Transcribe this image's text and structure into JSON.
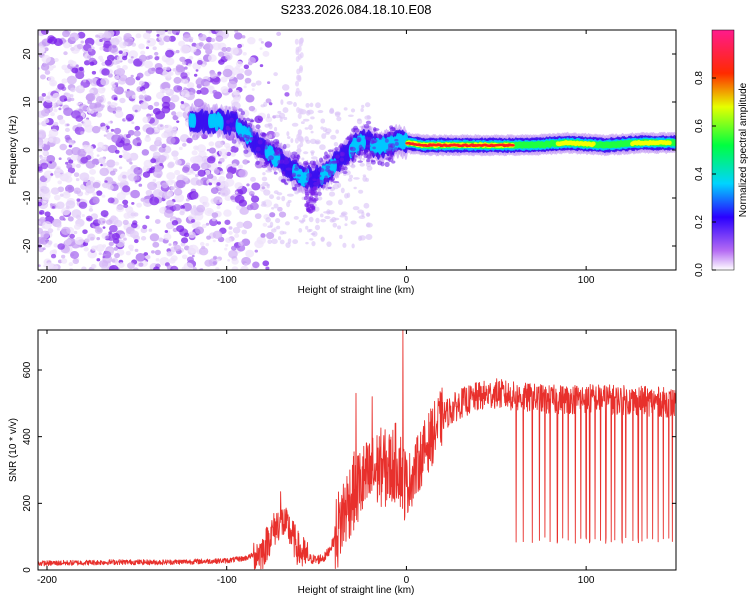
{
  "title": "S233.2026.084.18.10.E08",
  "chart_data": [
    {
      "type": "heatmap",
      "xlabel": "Height of straight line (km)",
      "ylabel": "Frequency (Hz)",
      "xlim": [
        -205,
        150
      ],
      "ylim": [
        -25,
        25
      ],
      "xticks": [
        -200,
        -100,
        0,
        100
      ],
      "yticks": [
        -20,
        -10,
        0,
        10,
        20
      ],
      "colorbar": {
        "label": "Normalized spectral amplitude",
        "range": [
          0,
          1
        ],
        "ticks": [
          "0.0",
          "0.2",
          "0.4",
          "0.6",
          "0.8"
        ],
        "stops": [
          "#ffffff",
          "#9a3cf0",
          "#0000ff",
          "#00ffff",
          "#00ff00",
          "#ffff00",
          "#ff0000",
          "#ff00ff"
        ]
      },
      "ridge": {
        "x": [
          -120,
          -105,
          -95,
          -88,
          -82,
          -76,
          -70,
          -64,
          -58,
          -52,
          -46,
          -40,
          -34,
          -28,
          -22,
          -16,
          -10,
          -4,
          0,
          10,
          30,
          50,
          70,
          90,
          110,
          130,
          150
        ],
        "y": [
          6,
          6,
          5.5,
          3,
          1,
          -1,
          -2,
          -4,
          -5.5,
          -6,
          -5,
          -3,
          -1,
          1,
          2,
          0.5,
          1,
          2,
          1.5,
          1,
          1,
          1,
          1,
          1.5,
          1,
          1.5,
          1.5
        ]
      }
    },
    {
      "type": "line",
      "xlabel": "Height of straight line (km)",
      "ylabel": "SNR (10 * v/v)",
      "xlim": [
        -205,
        150
      ],
      "ylim": [
        0,
        720
      ],
      "xticks": [
        -200,
        -100,
        0,
        100
      ],
      "yticks": [
        0,
        200,
        400,
        600
      ],
      "color": "#e8302c",
      "series": [
        {
          "name": "SNR",
          "x": [
            -205,
            -180,
            -160,
            -140,
            -120,
            -100,
            -90,
            -80,
            -75,
            -70,
            -65,
            -60,
            -55,
            -50,
            -45,
            -40,
            -35,
            -30,
            -25,
            -20,
            -15,
            -10,
            -5,
            -2,
            0,
            5,
            10,
            15,
            20,
            30,
            40,
            50,
            60,
            80,
            100,
            120,
            140,
            150
          ],
          "y": [
            20,
            22,
            24,
            23,
            25,
            28,
            35,
            55,
            110,
            150,
            120,
            60,
            35,
            30,
            40,
            90,
            170,
            230,
            260,
            280,
            310,
            300,
            330,
            280,
            250,
            300,
            360,
            410,
            460,
            500,
            520,
            530,
            520,
            510,
            515,
            510,
            505,
            500
          ]
        }
      ],
      "dropouts_x": [
        61,
        65,
        70,
        74,
        77,
        80,
        84,
        87,
        90,
        94,
        97,
        100,
        102,
        105,
        108,
        111,
        114,
        116,
        120,
        122,
        126,
        129,
        131,
        134,
        137,
        140,
        143,
        146,
        148
      ],
      "spikes": [
        {
          "x": -28,
          "y": 530
        },
        {
          "x": -19,
          "y": 520
        },
        {
          "x": -2,
          "y": 720
        },
        {
          "x": -70,
          "y": 235
        }
      ]
    }
  ]
}
